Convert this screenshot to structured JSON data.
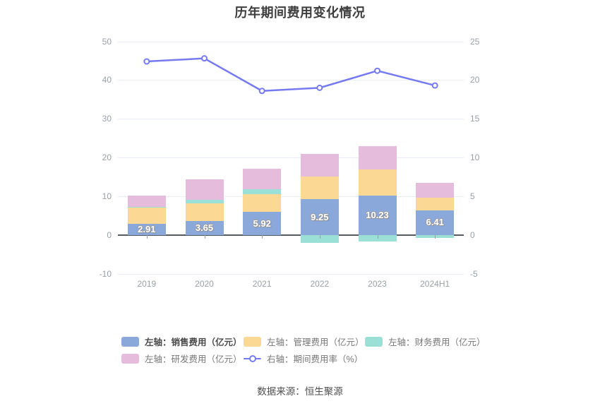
{
  "title": "历年期间费用变化情况",
  "footer": "数据来源：恒生聚源",
  "colors": {
    "sales": "#8ba8da",
    "admin": "#fbd893",
    "finance": "#9ae0d6",
    "rd": "#e6bcdd",
    "rate_line": "#767af0",
    "grid": "#e9edf4",
    "axis_line": "#555a60",
    "tick_text": "#9aa0a8",
    "legend_text": "#777777",
    "title_text": "#3d3d3d"
  },
  "chart_data": {
    "type": "bar-line-combo",
    "title": "历年期间费用变化情况",
    "categories": [
      "2019",
      "2020",
      "2021",
      "2022",
      "2023",
      "2024H1"
    ],
    "bar_series": [
      {
        "name": "左轴：销售费用（亿元）",
        "key": "sales",
        "values": [
          2.91,
          3.65,
          5.92,
          9.25,
          10.23,
          6.41
        ],
        "labeled": true
      },
      {
        "name": "左轴：管理费用（亿元）",
        "key": "admin",
        "values": [
          4.3,
          4.6,
          4.7,
          5.9,
          6.7,
          3.3
        ]
      },
      {
        "name": "左轴：财务费用（亿元）",
        "key": "finance",
        "values": [
          0.1,
          0.8,
          1.2,
          -2.0,
          -1.6,
          -0.8
        ]
      },
      {
        "name": "左轴：研发费用（亿元）",
        "key": "rd",
        "values": [
          2.9,
          5.3,
          5.3,
          5.8,
          6.1,
          3.8
        ]
      }
    ],
    "line_series": {
      "name": "右轴：期间费用率（%）",
      "key": "rate",
      "values": [
        22.4,
        22.8,
        18.6,
        19.0,
        21.2,
        19.3
      ]
    },
    "bar_labels": [
      "2.91",
      "3.65",
      "5.92",
      "9.25",
      "10.23",
      "6.41"
    ],
    "left_axis": {
      "ticks": [
        50,
        40,
        30,
        20,
        10,
        0,
        -10
      ],
      "min": -10,
      "max": 50
    },
    "right_axis": {
      "ticks": [
        25,
        20,
        15,
        10,
        5,
        0,
        -5
      ],
      "min": -5,
      "max": 25
    },
    "grid": true,
    "legend_position": "bottom",
    "stack": true
  },
  "legend": {
    "items": [
      {
        "label": "左轴：销售费用（亿元）",
        "type": "rect",
        "color_key": "sales",
        "emphasis": true
      },
      {
        "label": "左轴：管理费用（亿元）",
        "type": "rect",
        "color_key": "admin"
      },
      {
        "label": "左轴：财务费用（亿元）",
        "type": "rect",
        "color_key": "finance"
      },
      {
        "label": "左轴：研发费用（亿元）",
        "type": "rect",
        "color_key": "rd"
      },
      {
        "label": "右轴：期间费用率（%）",
        "type": "line",
        "color_key": "rate_line"
      }
    ]
  }
}
